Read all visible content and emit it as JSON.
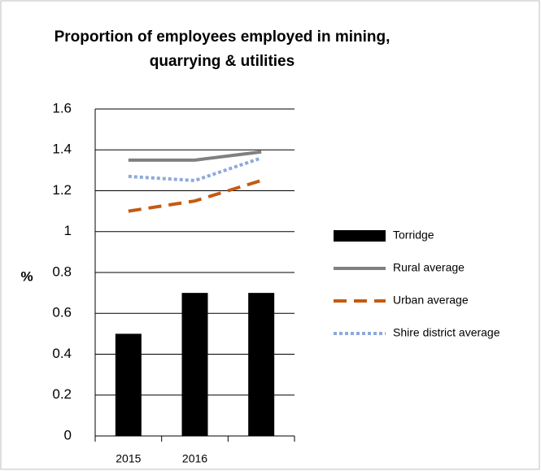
{
  "chart_data": {
    "type": "bar",
    "title": [
      "Proportion of employees employed in mining,",
      "quarrying & utilities"
    ],
    "y_label": "%",
    "categories": [
      "2015",
      "2016",
      null
    ],
    "series": [
      {
        "name": "Torridge",
        "type": "bar",
        "color": "#000000",
        "values": [
          0.5,
          0.7,
          0.7
        ]
      },
      {
        "name": "Rural average",
        "type": "line",
        "dash": "solid",
        "color": "#808080",
        "values": [
          1.35,
          1.35,
          1.39
        ]
      },
      {
        "name": "Urban average",
        "type": "line",
        "dash": "dashed",
        "color": "#c55a11",
        "values": [
          1.1,
          1.15,
          1.25
        ]
      },
      {
        "name": "Shire district average",
        "type": "line",
        "dash": "dotted",
        "color": "#8ea9db",
        "values": [
          1.27,
          1.25,
          1.36
        ]
      }
    ],
    "ylim": [
      0,
      1.6
    ],
    "yticks": [
      0,
      0.2,
      0.4,
      0.6,
      0.8,
      1,
      1.2,
      1.4,
      1.6
    ],
    "grid": true,
    "legend": "right"
  }
}
